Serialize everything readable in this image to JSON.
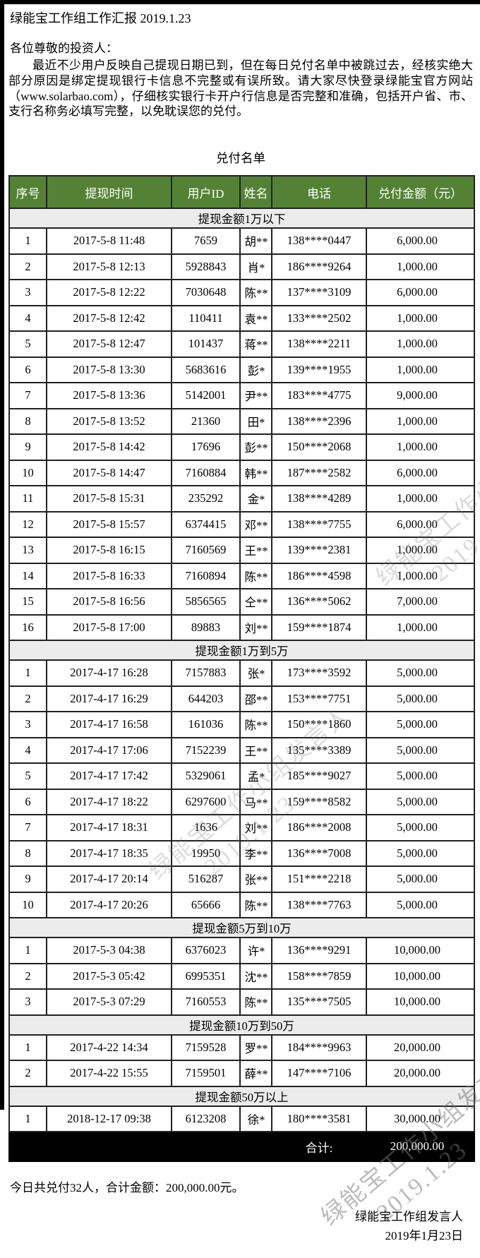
{
  "header": {
    "title": "绿能宝工作组工作汇报 2019.1.23",
    "greeting": "各位尊敬的投资人：",
    "notice": "最近不少用户反映自己提现日期已到，但在每日兑付名单中被跳过去，经核实绝大部分原因是绑定提现银行卡信息不完整或有误所致。请大家尽快登录绿能宝官方网站（www.solarbao.com），仔细核实银行卡开户行信息是否完整和准确，包括开户省、市、支行名称务必填写完整，以免耽误您的兑付。"
  },
  "table": {
    "title": "兑付名单",
    "headers": [
      "序号",
      "提现时间",
      "用户ID",
      "姓名",
      "电话",
      "兑付金额（元）"
    ],
    "sections": [
      {
        "label": "提现金额1万以下",
        "rows": [
          [
            "1",
            "2017-5-8 11:48",
            "7659",
            "胡**",
            "138****0447",
            "6,000.00"
          ],
          [
            "2",
            "2017-5-8 12:13",
            "5928843",
            "肖*",
            "186****9264",
            "1,000.00"
          ],
          [
            "3",
            "2017-5-8 12:22",
            "7030648",
            "陈**",
            "137****3109",
            "6,000.00"
          ],
          [
            "4",
            "2017-5-8 12:42",
            "110411",
            "袁**",
            "133****2502",
            "1,000.00"
          ],
          [
            "5",
            "2017-5-8 12:47",
            "101437",
            "蒋**",
            "138****2211",
            "1,000.00"
          ],
          [
            "6",
            "2017-5-8 13:30",
            "5683616",
            "彭*",
            "139****1955",
            "1,000.00"
          ],
          [
            "7",
            "2017-5-8 13:36",
            "5142001",
            "尹**",
            "183****4775",
            "9,000.00"
          ],
          [
            "8",
            "2017-5-8 13:52",
            "21360",
            "田*",
            "138****2396",
            "1,000.00"
          ],
          [
            "9",
            "2017-5-8 14:42",
            "17696",
            "彭**",
            "150****2068",
            "1,000.00"
          ],
          [
            "10",
            "2017-5-8 14:47",
            "7160884",
            "韩**",
            "187****2582",
            "6,000.00"
          ],
          [
            "11",
            "2017-5-8 15:31",
            "235292",
            "金*",
            "138****4289",
            "1,000.00"
          ],
          [
            "12",
            "2017-5-8 15:57",
            "6374415",
            "邓**",
            "138****7755",
            "6,000.00"
          ],
          [
            "13",
            "2017-5-8 16:15",
            "7160569",
            "王**",
            "139****2381",
            "1,000.00"
          ],
          [
            "14",
            "2017-5-8 16:33",
            "7160894",
            "陈**",
            "186****4598",
            "1,000.00"
          ],
          [
            "15",
            "2017-5-8 16:56",
            "5856565",
            "仝**",
            "136****5062",
            "7,000.00"
          ],
          [
            "16",
            "2017-5-8 17:00",
            "89883",
            "刘**",
            "159****1874",
            "1,000.00"
          ]
        ]
      },
      {
        "label": "提现金额1万到5万",
        "rows": [
          [
            "1",
            "2017-4-17 16:28",
            "7157883",
            "张*",
            "173****3592",
            "5,000.00"
          ],
          [
            "2",
            "2017-4-17 16:29",
            "644203",
            "邵**",
            "153****7751",
            "5,000.00"
          ],
          [
            "3",
            "2017-4-17 16:58",
            "161036",
            "陈**",
            "150****1860",
            "5,000.00"
          ],
          [
            "4",
            "2017-4-17 17:06",
            "7152239",
            "王**",
            "135****3389",
            "5,000.00"
          ],
          [
            "5",
            "2017-4-17 17:42",
            "5329061",
            "孟*",
            "185****9027",
            "5,000.00"
          ],
          [
            "6",
            "2017-4-17 18:22",
            "6297600",
            "马**",
            "159****8582",
            "5,000.00"
          ],
          [
            "7",
            "2017-4-17 18:31",
            "1636",
            "刘**",
            "186****2008",
            "5,000.00"
          ],
          [
            "8",
            "2017-4-17 18:35",
            "19950",
            "李**",
            "136****7008",
            "5,000.00"
          ],
          [
            "9",
            "2017-4-17 20:14",
            "516287",
            "张**",
            "151****2218",
            "5,000.00"
          ],
          [
            "10",
            "2017-4-17 20:26",
            "65666",
            "陈**",
            "138****7763",
            "5,000.00"
          ]
        ]
      },
      {
        "label": "提现金额5万到10万",
        "rows": [
          [
            "1",
            "2017-5-3 04:38",
            "6376023",
            "许*",
            "136****9291",
            "10,000.00"
          ],
          [
            "2",
            "2017-5-3 05:42",
            "6995351",
            "沈**",
            "158****7859",
            "10,000.00"
          ],
          [
            "3",
            "2017-5-3 07:29",
            "7160553",
            "陈**",
            "135****7505",
            "10,000.00"
          ]
        ]
      },
      {
        "label": "提现金额10万到50万",
        "rows": [
          [
            "1",
            "2017-4-22 14:34",
            "7159528",
            "罗**",
            "184****9963",
            "20,000.00"
          ],
          [
            "2",
            "2017-4-22 15:55",
            "7159501",
            "薛**",
            "147****7106",
            "20,000.00"
          ]
        ]
      },
      {
        "label": "提现金额50万以上",
        "rows": [
          [
            "1",
            "2018-12-17 09:38",
            "6123208",
            "徐*",
            "180****3581",
            "30,000.00"
          ]
        ]
      }
    ],
    "total_label": "合计:",
    "total_value": "200,000.00"
  },
  "footer": {
    "summary": "今日共兑付32人，合计金额：200,000.00元。",
    "signer": "绿能宝工作组发言人",
    "date": "2019年1月23日"
  },
  "watermark": {
    "line1": "绿能宝工作小组发言人",
    "line2": "2019.1.23"
  },
  "colors": {
    "header_green": "#548235",
    "section_gray": "#ececec",
    "total_black": "#000000",
    "border": "#222222"
  }
}
